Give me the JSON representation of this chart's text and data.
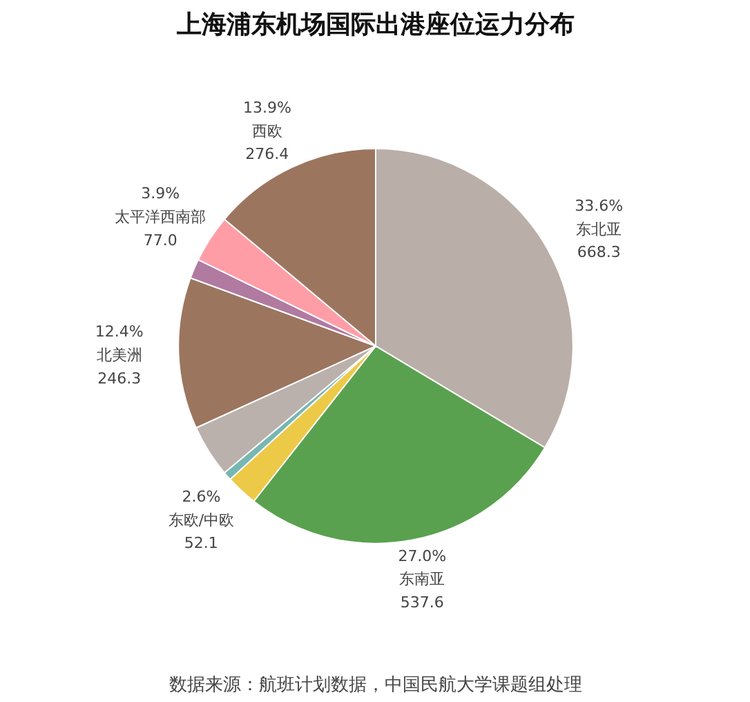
{
  "chart_data": {
    "type": "pie",
    "title": "上海浦东机场国际出港座位运力分布",
    "categories": [
      "东北亚",
      "东南亚",
      "东欧/中欧",
      null,
      null,
      "北美洲",
      null,
      "太平洋西南部",
      "西欧"
    ],
    "values": [
      33.6,
      27.0,
      2.6,
      0.7,
      4.3,
      12.4,
      1.6,
      3.9,
      13.9
    ],
    "colors": [
      "#b9aea8",
      "#59a14f",
      "#edc948",
      "#76b7b2",
      "#bab0ac",
      "#9c755f",
      "#b07aa1",
      "#ff9da7",
      "#9c755f"
    ],
    "value_labels": [
      "33.6%\n668.3",
      "27.0%\n537.6",
      "2.6%\n52.1",
      null,
      null,
      "12.4%\n246.3",
      null,
      "3.9%\n77.0",
      "13.9%\n276.4"
    ],
    "annotations": [
      "数据来源：航班计划数据，中国民航大学课题组处理"
    ]
  }
}
